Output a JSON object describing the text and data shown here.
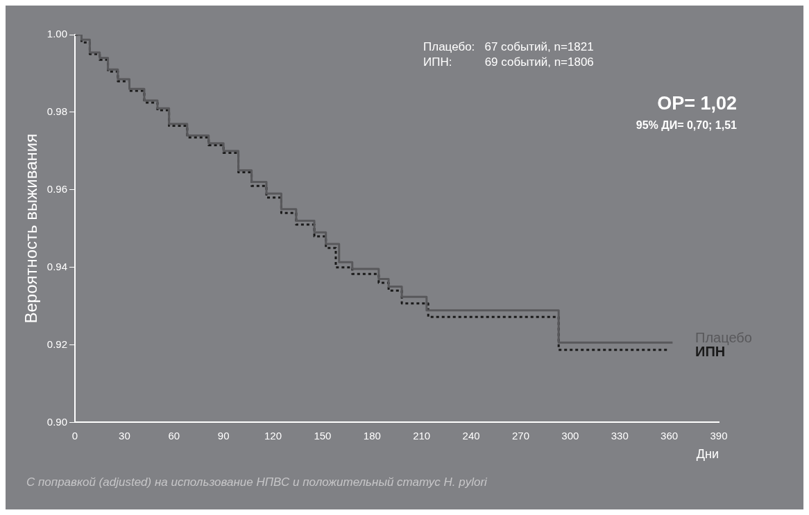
{
  "chart_data": {
    "type": "step",
    "xlabel": "Дни",
    "ylabel": "Вероятность выживания",
    "xlim": [
      0,
      390
    ],
    "xticks": [
      0,
      30,
      60,
      90,
      120,
      150,
      180,
      210,
      240,
      270,
      300,
      330,
      360,
      390
    ],
    "ylim": [
      0.9,
      1.0
    ],
    "yticks": [
      {
        "value": 0.9,
        "label": "0.90"
      },
      {
        "value": 0.92,
        "label": "0.92"
      },
      {
        "value": 0.94,
        "label": "0.94"
      },
      {
        "value": 0.96,
        "label": "0.96"
      },
      {
        "value": 0.98,
        "label": "0.98"
      },
      {
        "value": 1.0,
        "label": "1.00"
      }
    ],
    "grid": false,
    "legend": false,
    "marker": "none",
    "series": [
      {
        "name": "Плацебо",
        "color": "#58585b",
        "line_style": "solid",
        "x": [
          0,
          4,
          9,
          15,
          20,
          26,
          33,
          42,
          50,
          57,
          68,
          81,
          90,
          99,
          107,
          116,
          125,
          134,
          145,
          152,
          160,
          168,
          184,
          190,
          198,
          213,
          293,
          362
        ],
        "values": [
          1.0,
          0.9987,
          0.9954,
          0.994,
          0.991,
          0.9885,
          0.986,
          0.983,
          0.981,
          0.977,
          0.974,
          0.972,
          0.97,
          0.965,
          0.962,
          0.959,
          0.955,
          0.952,
          0.949,
          0.946,
          0.9413,
          0.9396,
          0.937,
          0.935,
          0.9324,
          0.9289,
          0.9206,
          0.9206
        ]
      },
      {
        "name": "ИПН",
        "color": "#1a1a1a",
        "line_style": "dotted",
        "x": [
          0,
          4,
          9,
          15,
          20,
          26,
          33,
          42,
          50,
          57,
          68,
          81,
          90,
          99,
          107,
          116,
          125,
          134,
          145,
          152,
          158,
          168,
          184,
          190,
          198,
          214,
          293,
          359
        ],
        "values": [
          1.0,
          0.998,
          0.995,
          0.9935,
          0.9905,
          0.988,
          0.9855,
          0.9825,
          0.9805,
          0.9765,
          0.9735,
          0.9715,
          0.9695,
          0.9645,
          0.961,
          0.958,
          0.954,
          0.951,
          0.948,
          0.945,
          0.94,
          0.9383,
          0.936,
          0.934,
          0.9307,
          0.9272,
          0.9187,
          0.9187
        ]
      }
    ],
    "annotations": [
      "Плацебо:   67 событий, n=1821",
      "ИПН:          69 событий, n=1806",
      "ОР= 1,02",
      "95% ДИ= 0,70; 1,51",
      "С поправкой (adjusted) на использование НПВС и положительный статус H. pylori"
    ]
  }
}
